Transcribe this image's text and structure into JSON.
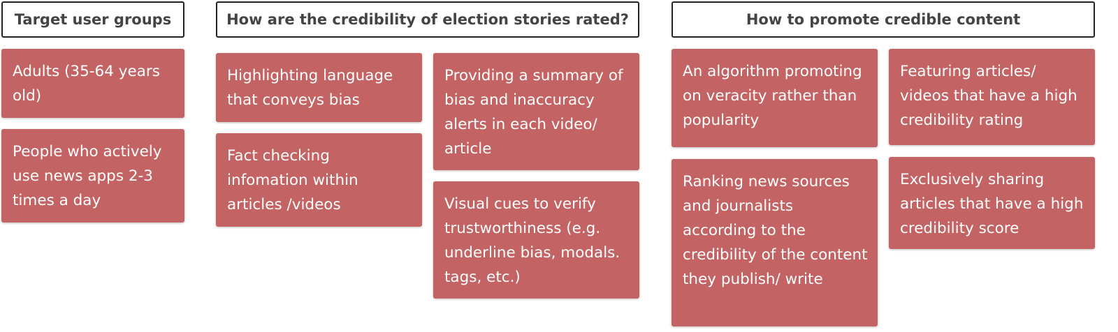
{
  "columns": [
    {
      "header": "Target user groups",
      "notes": [
        "Adults (35-64 years old)",
        "People who actively use news apps 2-3 times a day"
      ]
    },
    {
      "header": "How are the credibility of election stories rated?",
      "notes": [
        "Highlighting language that conveys bias",
        "Fact checking infomation within articles /videos",
        "Providing a summary of bias and inaccuracy alerts in each video/ article",
        "Visual cues to verify trustworthiness (e.g. underline bias, modals. tags, etc.)"
      ]
    },
    {
      "header": "How to promote credible content",
      "notes": [
        "An algorithm promoting on veracity rather than popularity",
        "Ranking news sources and journalists according to the credibility of the content they publish/ write",
        "Featuring articles/ videos that have a high credibility rating",
        "Exclusively sharing articles that have a high credibility score"
      ]
    }
  ],
  "colors": {
    "note_fill": "#c46364",
    "note_text": "#ffffff",
    "header_border": "#222222",
    "header_text": "#444444"
  }
}
